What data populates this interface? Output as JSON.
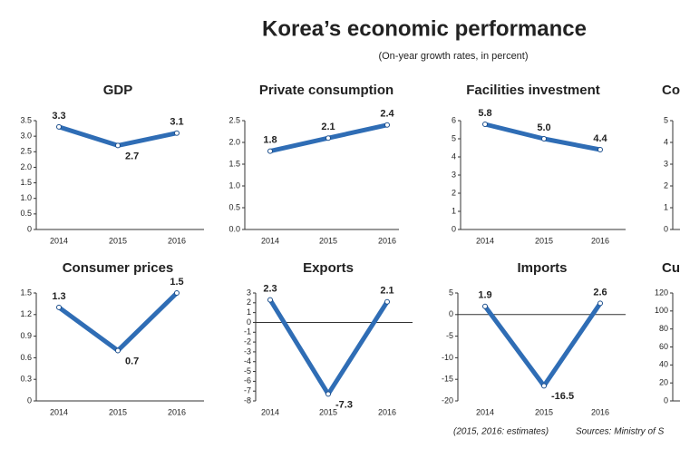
{
  "title": "Korea’s economic performance",
  "subtitle": "(On-year growth rates, in percent)",
  "footnote": "(2015, 2016: estimates)",
  "source": "Sources: Ministry of S",
  "chart_data": [
    {
      "type": "line",
      "title": "GDP",
      "categories": [
        "2014",
        "2015",
        "2016"
      ],
      "values": [
        3.3,
        2.7,
        3.1
      ],
      "color": "#2f6db5",
      "ylim": [
        0,
        3.5
      ],
      "yticks": [
        0,
        0.5,
        {
          "value": 1,
          "label": "1.0"
        },
        1.5,
        {
          "value": 2,
          "label": "2.0"
        },
        2.5,
        {
          "value": 3,
          "label": "3.0"
        },
        3.5
      ]
    },
    {
      "type": "line",
      "title": "Private consumption",
      "categories": [
        "2014",
        "2015",
        "2016"
      ],
      "values": [
        1.8,
        2.1,
        2.4
      ],
      "color": "#2f6db5",
      "ylim": [
        0,
        2.5
      ],
      "yticks": [
        {
          "value": 0,
          "label": "0.0"
        },
        0.5,
        {
          "value": 1,
          "label": "1.0"
        },
        1.5,
        {
          "value": 2,
          "label": "2.0"
        },
        2.5
      ]
    },
    {
      "type": "line",
      "title": "Facilities investment",
      "categories": [
        "2014",
        "2015",
        "2016"
      ],
      "values": [
        5.8,
        5,
        4.4
      ],
      "value_labels": [
        "5.8",
        "5.0",
        "4.4"
      ],
      "color": "#2f6db5",
      "ylim": [
        0,
        6
      ],
      "yticks": [
        0,
        1,
        2,
        3,
        4,
        5,
        6
      ]
    },
    {
      "type": "line",
      "title": "Co",
      "categories": [],
      "values": [],
      "color": "#2f6db5",
      "ylim": [
        0,
        5
      ],
      "yticks": [
        0,
        1,
        2,
        3,
        4,
        5
      ]
    },
    {
      "type": "line",
      "title": "Consumer prices",
      "categories": [
        "2014",
        "2015",
        "2016"
      ],
      "values": [
        1.3,
        0.7,
        1.5
      ],
      "color": "#2f6db5",
      "ylim": [
        0,
        1.5
      ],
      "yticks": [
        0,
        0.3,
        0.6,
        0.9,
        1.2,
        1.5
      ]
    },
    {
      "type": "line",
      "title": "Exports",
      "categories": [
        "2014",
        "2015",
        "2016"
      ],
      "values": [
        2.3,
        -7.3,
        2.1
      ],
      "color": "#2f6db5",
      "ylim": [
        -8,
        3
      ],
      "yticks": [
        3,
        2,
        1,
        0,
        -1,
        -2,
        -3,
        -4,
        -5,
        -6,
        -7,
        -8
      ]
    },
    {
      "type": "line",
      "title": "Imports",
      "categories": [
        "2014",
        "2015",
        "2016"
      ],
      "values": [
        1.9,
        -16.5,
        2.6
      ],
      "color": "#2f6db5",
      "ylim": [
        -20,
        5
      ],
      "yticks": [
        5,
        0,
        -5,
        -10,
        -15,
        -20
      ]
    },
    {
      "type": "line",
      "title": "Cu",
      "categories": [],
      "values": [],
      "color": "#2f6db5",
      "ylim": [
        0,
        120
      ],
      "yticks": [
        0,
        20,
        40,
        60,
        80,
        100,
        120
      ]
    }
  ]
}
